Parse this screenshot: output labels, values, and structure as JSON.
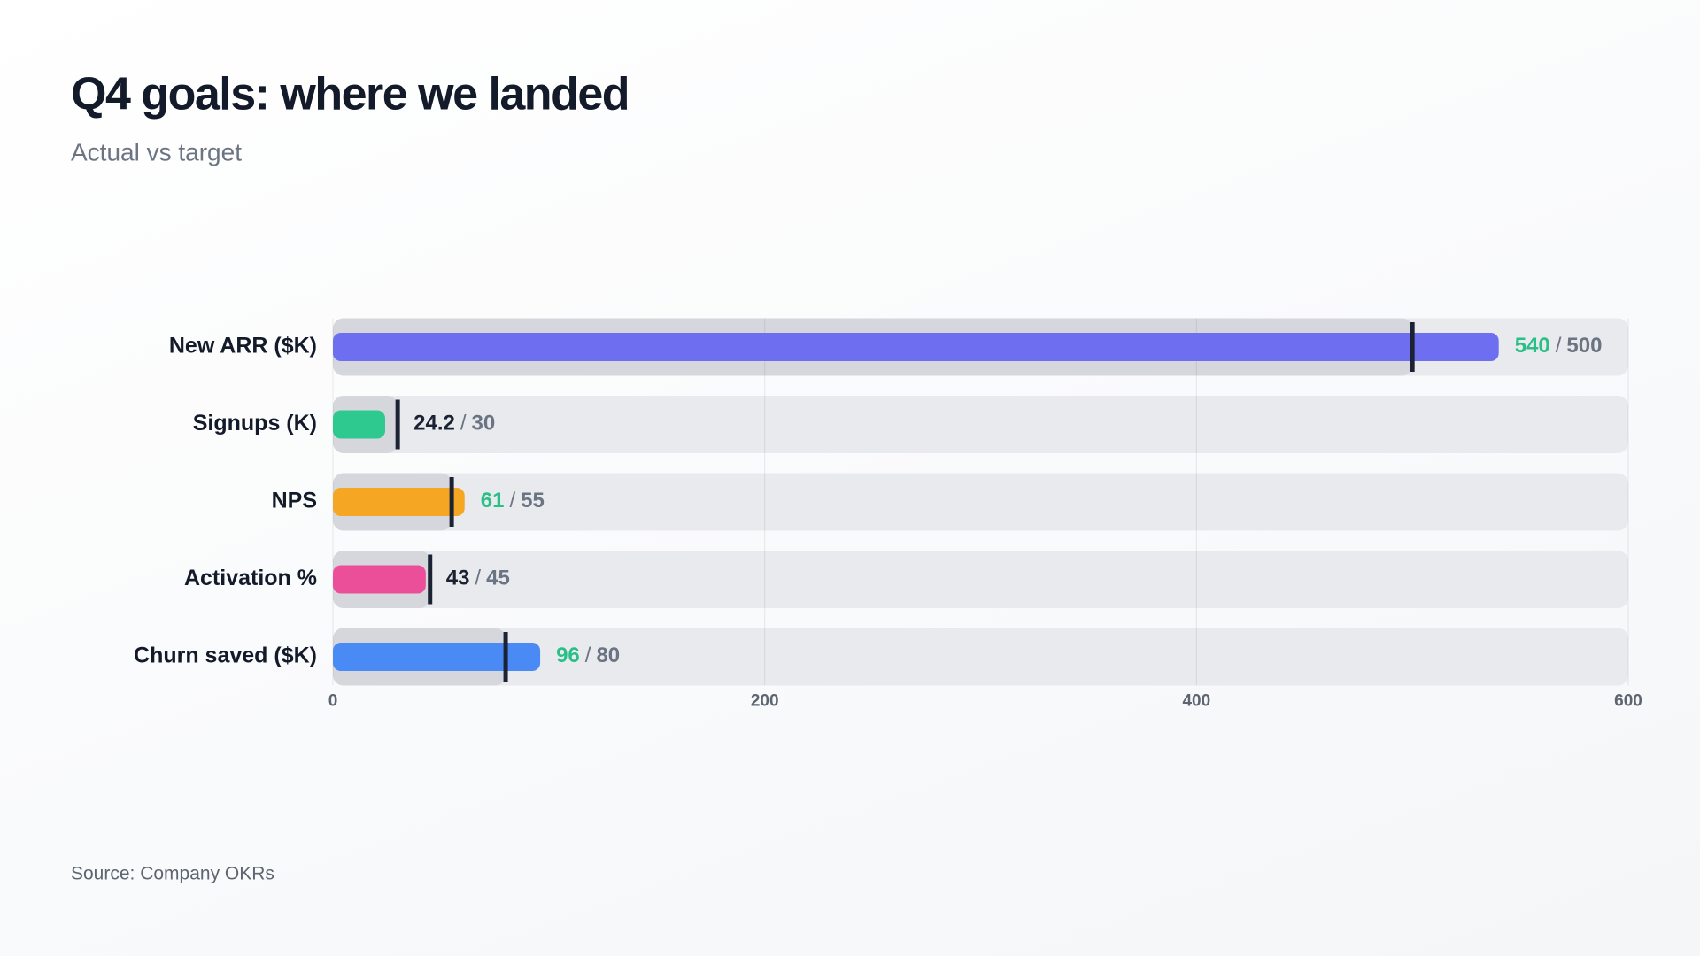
{
  "chart_data": {
    "type": "bullet",
    "title": "Q4 goals: where we landed",
    "subtitle": "Actual vs target",
    "source": "Source: Company OKRs",
    "categories": [
      "New ARR ($K)",
      "Signups (K)",
      "NPS",
      "Activation %",
      "Churn saved ($K)"
    ],
    "values": [
      540,
      24.2,
      61,
      43,
      96
    ],
    "targets": [
      500,
      30,
      55,
      45,
      80
    ],
    "colors": [
      "#6e6ff0",
      "#2ec98f",
      "#f5a623",
      "#ec4f9a",
      "#4a8af4"
    ],
    "separator": "/",
    "met_color": "#2bbf88",
    "unmet_color": "#1a2233",
    "target_color": "#6b7482",
    "xlim": [
      0,
      600
    ],
    "xticks": [
      0,
      200,
      400,
      600
    ],
    "grid": true
  }
}
